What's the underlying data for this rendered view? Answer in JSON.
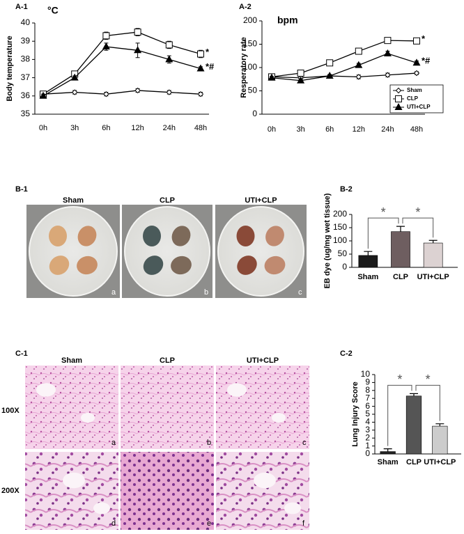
{
  "chart_data": [
    {
      "type": "line",
      "title": "A-1",
      "y_label": "Body temperature",
      "unit": "°C",
      "categories": [
        "0h",
        "3h",
        "6h",
        "12h",
        "24h",
        "48h"
      ],
      "series": [
        {
          "color": "#000000",
          "marker": "diamond-open",
          "values": [
            36.1,
            36.2,
            36.1,
            36.3,
            36.2,
            36.1
          ],
          "errors": [
            0.1,
            0.1,
            0.1,
            0.1,
            0.1,
            0.1
          ]
        },
        {
          "color": "#000000",
          "marker": "square-open",
          "values": [
            36.1,
            37.2,
            39.3,
            39.5,
            38.8,
            38.3
          ],
          "errors": [
            0.1,
            0.1,
            0.2,
            0.2,
            0.2,
            0.2
          ],
          "end_label": "*"
        },
        {
          "color": "#000000",
          "marker": "triangle-filled",
          "values": [
            36.0,
            37.0,
            38.7,
            38.5,
            38.0,
            37.5
          ],
          "errors": [
            0.1,
            0.1,
            0.2,
            0.4,
            0.2,
            0.1
          ],
          "end_label": "*#"
        }
      ],
      "ylim": [
        35,
        40
      ],
      "yticks": [
        35,
        36,
        37,
        38,
        39,
        40
      ]
    },
    {
      "type": "line",
      "title": "A-2",
      "y_label": "Resperatory rate",
      "unit": "bpm",
      "legend": "right",
      "categories": [
        "0h",
        "3h",
        "6h",
        "12h",
        "24h",
        "48h"
      ],
      "series": [
        {
          "name": "Sham",
          "color": "#000000",
          "marker": "diamond-open",
          "values": [
            80,
            78,
            82,
            80,
            84,
            88
          ],
          "errors": [
            3,
            3,
            3,
            4,
            4,
            3
          ]
        },
        {
          "name": "CLP",
          "color": "#000000",
          "marker": "square-open",
          "values": [
            80,
            88,
            110,
            135,
            158,
            157
          ],
          "errors": [
            3,
            3,
            4,
            5,
            6,
            6
          ],
          "end_label": "*"
        },
        {
          "name": "UTI+CLP",
          "color": "#000000",
          "marker": "triangle-filled",
          "values": [
            78,
            72,
            82,
            105,
            130,
            110
          ],
          "errors": [
            3,
            3,
            3,
            4,
            5,
            4
          ],
          "end_label": "*#"
        }
      ],
      "ylim": [
        0,
        200
      ],
      "yticks": [
        0,
        50,
        100,
        150,
        200
      ]
    },
    {
      "type": "bar",
      "title": "B-2",
      "y_label": "EB dye (ug/mg wet tissue)",
      "categories": [
        "Sham",
        "CLP",
        "UTI+CLP"
      ],
      "values": [
        45,
        135,
        92
      ],
      "errors": [
        15,
        20,
        10
      ],
      "colors": [
        "#1a1a1a",
        "#6e5e60",
        "#dcd2d2"
      ],
      "significance_marks": [
        "*",
        "*"
      ],
      "ylim": [
        0,
        200
      ],
      "yticks": [
        0,
        50,
        100,
        150,
        200
      ]
    },
    {
      "type": "bar",
      "title": "C-2",
      "y_label": "Lung Injury Score",
      "categories": [
        "Sham",
        "CLP",
        "UTI+CLP"
      ],
      "values": [
        0.3,
        7.3,
        3.5
      ],
      "errors": [
        0.35,
        0.3,
        0.3
      ],
      "colors": [
        "#222222",
        "#555555",
        "#cccccc"
      ],
      "significance_marks": [
        "*",
        "*"
      ],
      "ylim": [
        0,
        10
      ],
      "yticks": [
        0,
        1,
        2,
        3,
        4,
        5,
        6,
        7,
        8,
        9,
        10
      ]
    }
  ],
  "figures": {
    "B1": {
      "title": "B-1",
      "columns": [
        "Sham",
        "CLP",
        "UTI+CLP"
      ],
      "letters": [
        "a",
        "b",
        "c"
      ]
    },
    "C1": {
      "title": "C-1",
      "columns": [
        "Sham",
        "CLP",
        "UTI+CLP"
      ],
      "rows": [
        "100X",
        "200X"
      ],
      "letters": [
        "a",
        "b",
        "c",
        "d",
        "e",
        "f"
      ]
    }
  }
}
